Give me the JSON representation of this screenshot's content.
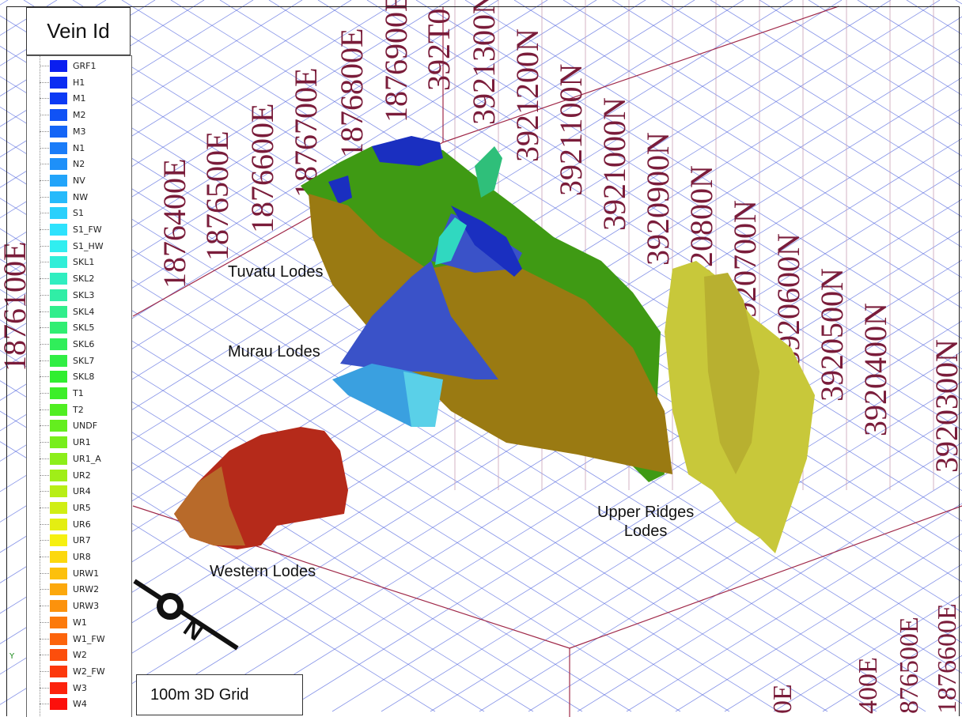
{
  "legend": {
    "title": "Vein Id",
    "items": [
      {
        "name": "GRF1",
        "color": "#0a1ef0"
      },
      {
        "name": "H1",
        "color": "#0b2cf2"
      },
      {
        "name": "M1",
        "color": "#0c3af4"
      },
      {
        "name": "M2",
        "color": "#1052f5"
      },
      {
        "name": "M3",
        "color": "#1465f6"
      },
      {
        "name": "N1",
        "color": "#1a7cf8"
      },
      {
        "name": "N2",
        "color": "#1e90f9"
      },
      {
        "name": "NV",
        "color": "#22a4fa"
      },
      {
        "name": "NW",
        "color": "#26bafb"
      },
      {
        "name": "S1",
        "color": "#2ad0fc"
      },
      {
        "name": "S1_FW",
        "color": "#2ee2fd"
      },
      {
        "name": "S1_HW",
        "color": "#30eef0"
      },
      {
        "name": "SKL1",
        "color": "#30eed8"
      },
      {
        "name": "SKL2",
        "color": "#30eec0"
      },
      {
        "name": "SKL3",
        "color": "#30eea6"
      },
      {
        "name": "SKL4",
        "color": "#30ee8c"
      },
      {
        "name": "SKL5",
        "color": "#30ee72"
      },
      {
        "name": "SKL6",
        "color": "#30ee5a"
      },
      {
        "name": "SKL7",
        "color": "#30ee44"
      },
      {
        "name": "SKL8",
        "color": "#30ee30"
      },
      {
        "name": "T1",
        "color": "#3cee28"
      },
      {
        "name": "T2",
        "color": "#50ee22"
      },
      {
        "name": "UNDF",
        "color": "#64ee1e"
      },
      {
        "name": "UR1",
        "color": "#78ee1c"
      },
      {
        "name": "UR1_A",
        "color": "#8cee1a"
      },
      {
        "name": "UR2",
        "color": "#a0ee18"
      },
      {
        "name": "UR4",
        "color": "#b8ee16"
      },
      {
        "name": "UR5",
        "color": "#d0ee14"
      },
      {
        "name": "UR6",
        "color": "#e4ee12"
      },
      {
        "name": "UR7",
        "color": "#f6f010"
      },
      {
        "name": "UR8",
        "color": "#fcd80e"
      },
      {
        "name": "URW1",
        "color": "#fcc00c"
      },
      {
        "name": "URW2",
        "color": "#fca80c"
      },
      {
        "name": "URW3",
        "color": "#fc920c"
      },
      {
        "name": "W1",
        "color": "#fc7a0c"
      },
      {
        "name": "W1_FW",
        "color": "#fc640c"
      },
      {
        "name": "W2",
        "color": "#fc4e0c"
      },
      {
        "name": "W2_FW",
        "color": "#fc380c"
      },
      {
        "name": "W3",
        "color": "#fc220c"
      },
      {
        "name": "W4",
        "color": "#fc100c"
      }
    ]
  },
  "grid_caption": "100m 3D Grid",
  "lodes": {
    "tuvatu": "Tuvatu Lodes",
    "murau": "Murau Lodes",
    "upper_ridges_1": "Upper Ridges",
    "upper_ridges_2": "Lodes",
    "western": "Western Lodes"
  },
  "easting_labels": [
    "1876400E",
    "1876500E",
    "1876600E",
    "1876700E",
    "1876800E",
    "1876900E",
    "3921300N"
  ],
  "overlap_label": "392T0",
  "northing_labels": [
    "3921200N",
    "3921100N",
    "3921000N",
    "3920900N",
    "3920800N",
    "3920700N",
    "3920600N",
    "3920500N",
    "3920400N",
    "3920300N"
  ],
  "left_edge_label": "1876100E",
  "bottom_labels": [
    "1876600E",
    "876500E",
    "400E",
    "0E"
  ],
  "axis_label": "Y",
  "north_arrow": {
    "letter": "N"
  },
  "colors": {
    "grid_line": "#5d6fe0",
    "grid_label": "#7a1c3a",
    "tuvatu_green": "#3f9a14",
    "ochre": "#9a7a12",
    "murau_blue": "#3a52c8",
    "western_red": "#b52a1a",
    "upper_yellow": "#c8c83a"
  }
}
